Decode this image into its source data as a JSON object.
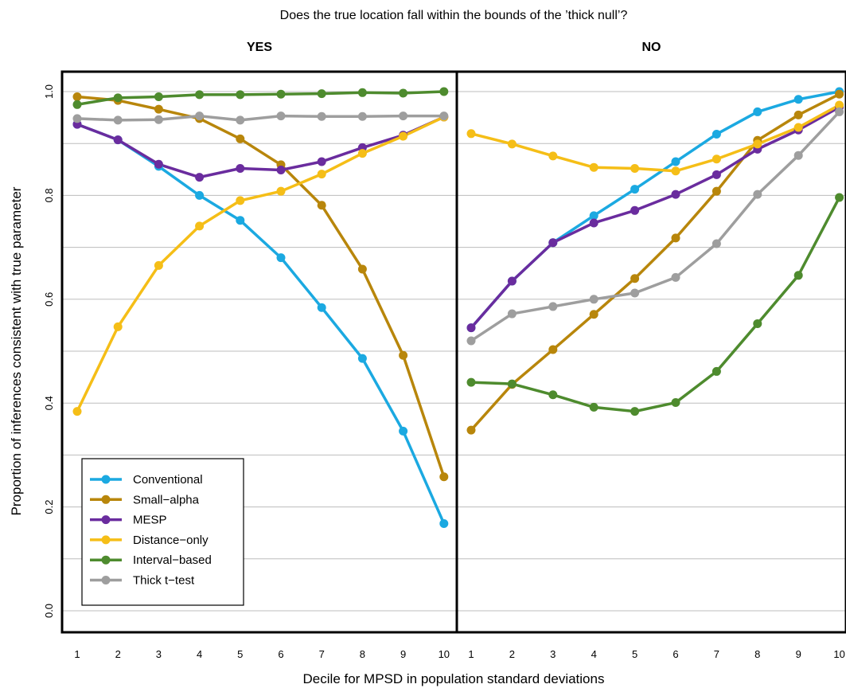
{
  "chart_data": {
    "type": "line",
    "title": "Does the true location fall within the bounds of the ’thick null’?",
    "xlabel": "Decile for MPSD in population standard deviations",
    "ylabel": "Proportion of inferences consistent with true parameter",
    "ylim": [
      0,
      1
    ],
    "yticks": [
      "0.0",
      "0.2",
      "0.4",
      "0.6",
      "0.8",
      "1.0"
    ],
    "xticks": [
      "1",
      "2",
      "3",
      "4",
      "5",
      "6",
      "7",
      "8",
      "9",
      "10"
    ],
    "x": [
      1,
      2,
      3,
      4,
      5,
      6,
      7,
      8,
      9,
      10
    ],
    "grid": "horizontal",
    "legend_placement": "bottom-left of first panel",
    "panels": [
      {
        "title": "YES",
        "series": [
          {
            "name": "Conventional",
            "color": "#1BA9E1",
            "values": [
              0.937,
              0.907,
              0.856,
              0.8,
              0.752,
              0.68,
              0.584,
              0.486,
              0.346,
              0.168
            ]
          },
          {
            "name": "Small−alpha",
            "color": "#B8860B",
            "values": [
              0.99,
              0.983,
              0.966,
              0.948,
              0.909,
              0.859,
              0.781,
              0.658,
              0.492,
              0.258
            ]
          },
          {
            "name": "MESP",
            "color": "#6A2C9E",
            "values": [
              0.937,
              0.907,
              0.86,
              0.835,
              0.852,
              0.849,
              0.865,
              0.892,
              0.916,
              0.951
            ]
          },
          {
            "name": "Distance−only",
            "color": "#F5BE17",
            "values": [
              0.384,
              0.547,
              0.665,
              0.741,
              0.79,
              0.808,
              0.841,
              0.881,
              0.914,
              0.951
            ]
          },
          {
            "name": "Interval−based",
            "color": "#4E8B2E",
            "values": [
              0.975,
              0.988,
              0.99,
              0.994,
              0.994,
              0.995,
              0.996,
              0.998,
              0.997,
              1.0
            ]
          },
          {
            "name": "Thick t−test",
            "color": "#9E9E9E",
            "values": [
              0.948,
              0.945,
              0.946,
              0.953,
              0.945,
              0.953,
              0.952,
              0.952,
              0.953,
              0.953
            ]
          }
        ]
      },
      {
        "title": "NO",
        "series": [
          {
            "name": "Conventional",
            "color": "#1BA9E1",
            "values": [
              0.545,
              0.635,
              0.709,
              0.761,
              0.812,
              0.865,
              0.918,
              0.961,
              0.985,
              1.0
            ]
          },
          {
            "name": "Small−alpha",
            "color": "#B8860B",
            "values": [
              0.348,
              0.436,
              0.503,
              0.571,
              0.64,
              0.718,
              0.808,
              0.906,
              0.955,
              0.995
            ]
          },
          {
            "name": "MESP",
            "color": "#6A2C9E",
            "values": [
              0.545,
              0.635,
              0.709,
              0.747,
              0.771,
              0.802,
              0.84,
              0.889,
              0.926,
              0.97
            ]
          },
          {
            "name": "Distance−only",
            "color": "#F5BE17",
            "values": [
              0.919,
              0.899,
              0.876,
              0.854,
              0.852,
              0.847,
              0.87,
              0.899,
              0.931,
              0.974
            ]
          },
          {
            "name": "Interval−based",
            "color": "#4E8B2E",
            "values": [
              0.44,
              0.437,
              0.416,
              0.392,
              0.384,
              0.401,
              0.461,
              0.553,
              0.646,
              0.796
            ]
          },
          {
            "name": "Thick t−test",
            "color": "#9E9E9E",
            "values": [
              0.52,
              0.572,
              0.586,
              0.6,
              0.612,
              0.642,
              0.707,
              0.802,
              0.877,
              0.961
            ]
          }
        ]
      }
    ]
  }
}
